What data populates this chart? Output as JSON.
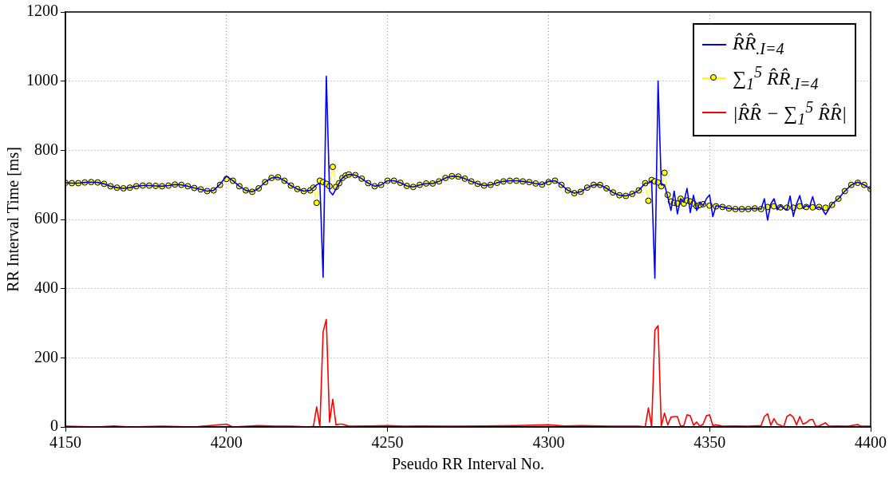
{
  "chart_data": {
    "type": "line",
    "xlabel": "Pseudo RR Interval No.",
    "ylabel": "RR Interval Time [ms]",
    "xlim": [
      4150,
      4400
    ],
    "xticks": [
      4150,
      4200,
      4250,
      4300,
      4350,
      4400
    ],
    "ylim": [
      0,
      1200
    ],
    "yticks": [
      0,
      200,
      400,
      600,
      800,
      1000,
      1200
    ],
    "grid": true,
    "legend": "top right",
    "series": [
      {
        "name": "R̂R̂$_{.I=4}$",
        "color": "#0000ff",
        "marker": "none",
        "x": [
          4150,
          4152,
          4154,
          4156,
          4158,
          4160,
          4162,
          4164,
          4166,
          4168,
          4170,
          4172,
          4174,
          4176,
          4178,
          4180,
          4182,
          4184,
          4186,
          4188,
          4190,
          4192,
          4194,
          4196,
          4198,
          4200,
          4202,
          4204,
          4206,
          4208,
          4210,
          4212,
          4214,
          4216,
          4218,
          4220,
          4222,
          4224,
          4226,
          4227,
          4228,
          4229,
          4230,
          4231,
          4232,
          4233,
          4234,
          4235,
          4236,
          4237,
          4238,
          4240,
          4242,
          4244,
          4246,
          4248,
          4250,
          4252,
          4254,
          4256,
          4258,
          4260,
          4262,
          4264,
          4266,
          4268,
          4270,
          4272,
          4274,
          4276,
          4278,
          4280,
          4282,
          4284,
          4286,
          4288,
          4290,
          4292,
          4294,
          4296,
          4298,
          4300,
          4302,
          4304,
          4306,
          4308,
          4310,
          4312,
          4314,
          4316,
          4318,
          4320,
          4322,
          4324,
          4326,
          4328,
          4330,
          4331,
          4332,
          4333,
          4334,
          4335,
          4336,
          4337,
          4338,
          4339,
          4340,
          4341,
          4342,
          4343,
          4344,
          4345,
          4346,
          4347,
          4348,
          4349,
          4350,
          4351,
          4352,
          4354,
          4356,
          4358,
          4362,
          4364,
          4366,
          4367,
          4368,
          4369,
          4370,
          4371,
          4372,
          4373,
          4374,
          4375,
          4376,
          4377,
          4378,
          4379,
          4380,
          4381,
          4382,
          4383,
          4384,
          4385,
          4386,
          4387,
          4388,
          4390,
          4392,
          4394,
          4396,
          4398,
          4400
        ],
        "values": [
          706,
          705,
          705,
          707,
          708,
          707,
          703,
          696,
          692,
          690,
          692,
          696,
          698,
          698,
          697,
          696,
          698,
          701,
          700,
          696,
          691,
          687,
          682,
          684,
          702,
          725,
          712,
          696,
          684,
          680,
          690,
          708,
          720,
          722,
          712,
          698,
          688,
          682,
          684,
          692,
          700,
          705,
          433,
          1014,
          682,
          671,
          688,
          705,
          720,
          727,
          730,
          728,
          718,
          705,
          696,
          700,
          712,
          712,
          706,
          697,
          694,
          700,
          704,
          704,
          710,
          720,
          725,
          724,
          718,
          710,
          703,
          698,
          700,
          706,
          710,
          712,
          712,
          710,
          708,
          704,
          701,
          710,
          712,
          700,
          684,
          676,
          680,
          692,
          700,
          700,
          690,
          678,
          670,
          668,
          674,
          684,
          705,
          705,
          712,
          430,
          1000,
          700,
          700,
          665,
          626,
          682,
          616,
          660,
          650,
          690,
          620,
          670,
          626,
          650,
          640,
          660,
          671,
          608,
          640,
          636,
          632,
          630,
          630,
          632,
          630,
          660,
          598,
          645,
          660,
          628,
          640,
          632,
          628,
          668,
          609,
          645,
          669,
          632,
          640,
          636,
          666,
          632,
          636,
          630,
          614,
          630,
          645,
          660,
          682,
          700,
          708,
          700,
          688
        ]
      },
      {
        "name": "∑$_{1}$$^{5}$ R̂R̂$_{.I=4}$",
        "color": "#ffff00",
        "marker": "circle",
        "x": [
          4150,
          4152,
          4154,
          4156,
          4158,
          4160,
          4162,
          4164,
          4166,
          4168,
          4170,
          4172,
          4174,
          4176,
          4178,
          4180,
          4182,
          4184,
          4186,
          4188,
          4190,
          4192,
          4194,
          4196,
          4198,
          4200,
          4202,
          4204,
          4206,
          4208,
          4210,
          4212,
          4214,
          4216,
          4218,
          4220,
          4222,
          4224,
          4226,
          4227,
          4228,
          4229,
          4230,
          4231,
          4232,
          4233,
          4234,
          4235,
          4236,
          4237,
          4238,
          4240,
          4242,
          4244,
          4246,
          4248,
          4250,
          4252,
          4254,
          4256,
          4258,
          4260,
          4262,
          4264,
          4266,
          4268,
          4270,
          4272,
          4274,
          4276,
          4278,
          4280,
          4282,
          4284,
          4286,
          4288,
          4290,
          4292,
          4294,
          4296,
          4298,
          4300,
          4302,
          4304,
          4306,
          4308,
          4310,
          4312,
          4314,
          4316,
          4318,
          4320,
          4322,
          4324,
          4326,
          4328,
          4330,
          4331,
          4332,
          4333,
          4334,
          4335,
          4336,
          4337,
          4338,
          4339,
          4340,
          4341,
          4342,
          4343,
          4344,
          4345,
          4346,
          4347,
          4348,
          4350,
          4352,
          4354,
          4356,
          4358,
          4360,
          4362,
          4364,
          4366,
          4368,
          4370,
          4372,
          4374,
          4376,
          4378,
          4380,
          4382,
          4384,
          4386,
          4388,
          4390,
          4392,
          4394,
          4396,
          4398,
          4400
        ],
        "values": [
          706,
          705,
          705,
          707,
          708,
          707,
          703,
          696,
          692,
          690,
          692,
          696,
          698,
          698,
          697,
          696,
          698,
          701,
          700,
          696,
          691,
          687,
          682,
          684,
          700,
          717,
          712,
          696,
          684,
          680,
          690,
          708,
          720,
          722,
          712,
          698,
          688,
          682,
          684,
          692,
          648,
          712,
          708,
          703,
          696,
          752,
          694,
          705,
          720,
          727,
          730,
          728,
          718,
          705,
          696,
          700,
          712,
          712,
          706,
          697,
          694,
          700,
          704,
          704,
          710,
          720,
          725,
          724,
          718,
          710,
          703,
          698,
          700,
          706,
          710,
          712,
          712,
          710,
          708,
          704,
          701,
          708,
          712,
          700,
          684,
          676,
          680,
          692,
          700,
          700,
          690,
          678,
          670,
          668,
          674,
          684,
          705,
          654,
          714,
          710,
          707,
          696,
          735,
          671,
          652,
          648,
          646,
          660,
          646,
          655,
          652,
          646,
          638,
          642,
          644,
          640,
          638,
          636,
          632,
          630,
          630,
          630,
          632,
          630,
          636,
          638,
          635,
          634,
          634,
          638,
          636,
          635,
          636,
          634,
          642,
          660,
          682,
          700,
          706,
          700,
          688
        ]
      },
      {
        "name": "|R̂R̂ − ∑$_{1}$$^{5}$ R̂R̂|",
        "color": "#ff0000",
        "marker": "none",
        "x": [
          4150,
          4160,
          4165,
          4170,
          4180,
          4190,
          4195,
          4200,
          4202,
          4210,
          4215,
          4220,
          4226,
          4227,
          4228,
          4229,
          4230,
          4231,
          4232,
          4233,
          4234,
          4235,
          4236,
          4238,
          4245,
          4250,
          4255,
          4260,
          4270,
          4280,
          4290,
          4300,
          4305,
          4310,
          4320,
          4328,
          4330,
          4331,
          4332,
          4333,
          4334,
          4335,
          4336,
          4337,
          4338,
          4339,
          4340,
          4341,
          4342,
          4343,
          4344,
          4345,
          4346,
          4347,
          4348,
          4349,
          4350,
          4351,
          4352,
          4354,
          4358,
          4362,
          4366,
          4367,
          4368,
          4369,
          4370,
          4371,
          4372,
          4373,
          4374,
          4375,
          4376,
          4377,
          4378,
          4379,
          4380,
          4381,
          4382,
          4383,
          4384,
          4386,
          4387,
          4390,
          4393,
          4396,
          4397,
          4400
        ],
        "values": [
          2,
          0,
          3,
          0,
          2,
          0,
          4,
          8,
          0,
          4,
          2,
          2,
          0,
          2,
          58,
          0,
          275,
          311,
          14,
          80,
          6,
          8,
          8,
          2,
          3,
          4,
          2,
          3,
          2,
          3,
          4,
          6,
          3,
          4,
          2,
          2,
          0,
          55,
          0,
          280,
          293,
          2,
          40,
          6,
          28,
          30,
          30,
          2,
          4,
          35,
          32,
          5,
          14,
          2,
          8,
          32,
          35,
          4,
          6,
          2,
          3,
          2,
          4,
          30,
          38,
          5,
          24,
          8,
          5,
          0,
          30,
          36,
          28,
          6,
          30,
          8,
          12,
          20,
          22,
          2,
          3,
          12,
          2,
          3,
          2,
          7,
          2,
          2
        ]
      }
    ]
  }
}
